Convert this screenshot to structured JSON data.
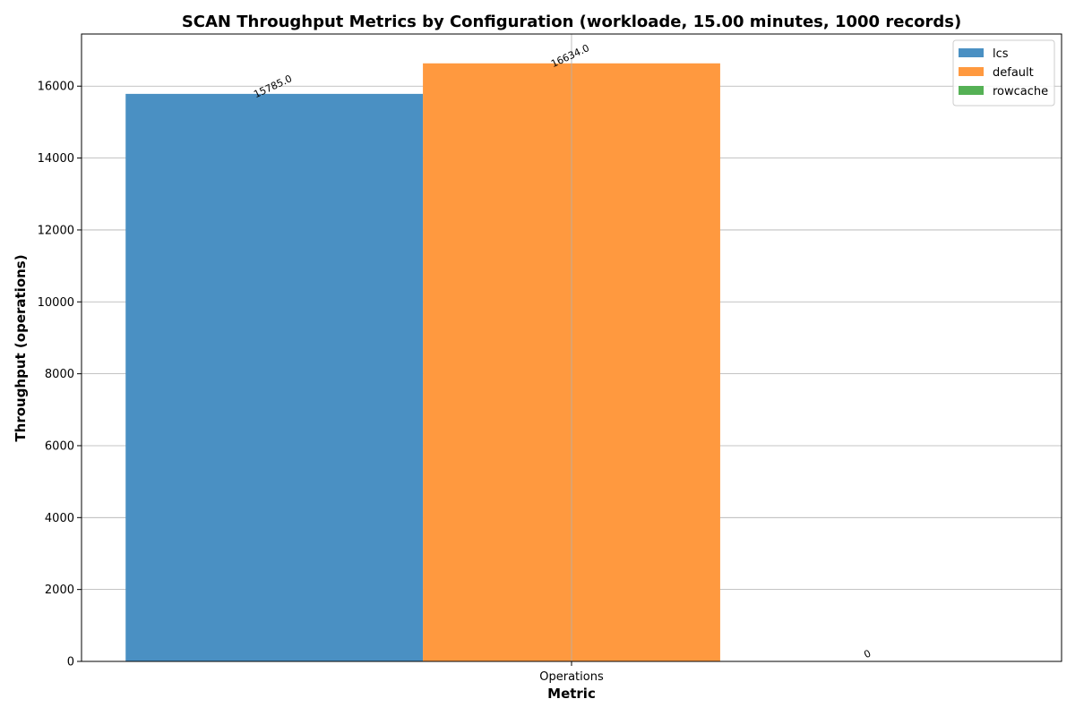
{
  "chart_data": {
    "type": "bar",
    "title": "SCAN Throughput Metrics by Configuration (workloade, 15.00 minutes, 1000 records)",
    "xlabel": "Metric",
    "ylabel": "Throughput (operations)",
    "categories": [
      "Operations"
    ],
    "series": [
      {
        "name": "lcs",
        "values": [
          15785.0
        ],
        "label": "15785.0",
        "color": "#4a90c3"
      },
      {
        "name": "default",
        "values": [
          16634.0
        ],
        "label": "16634.0",
        "color": "#ff993f"
      },
      {
        "name": "rowcache",
        "values": [
          0
        ],
        "label": "0",
        "color": "#55b155"
      }
    ],
    "ylim": [
      0,
      17450
    ],
    "yticks": [
      0,
      2000,
      4000,
      6000,
      8000,
      10000,
      12000,
      14000,
      16000
    ],
    "grid": true,
    "legend_position": "top-right"
  }
}
